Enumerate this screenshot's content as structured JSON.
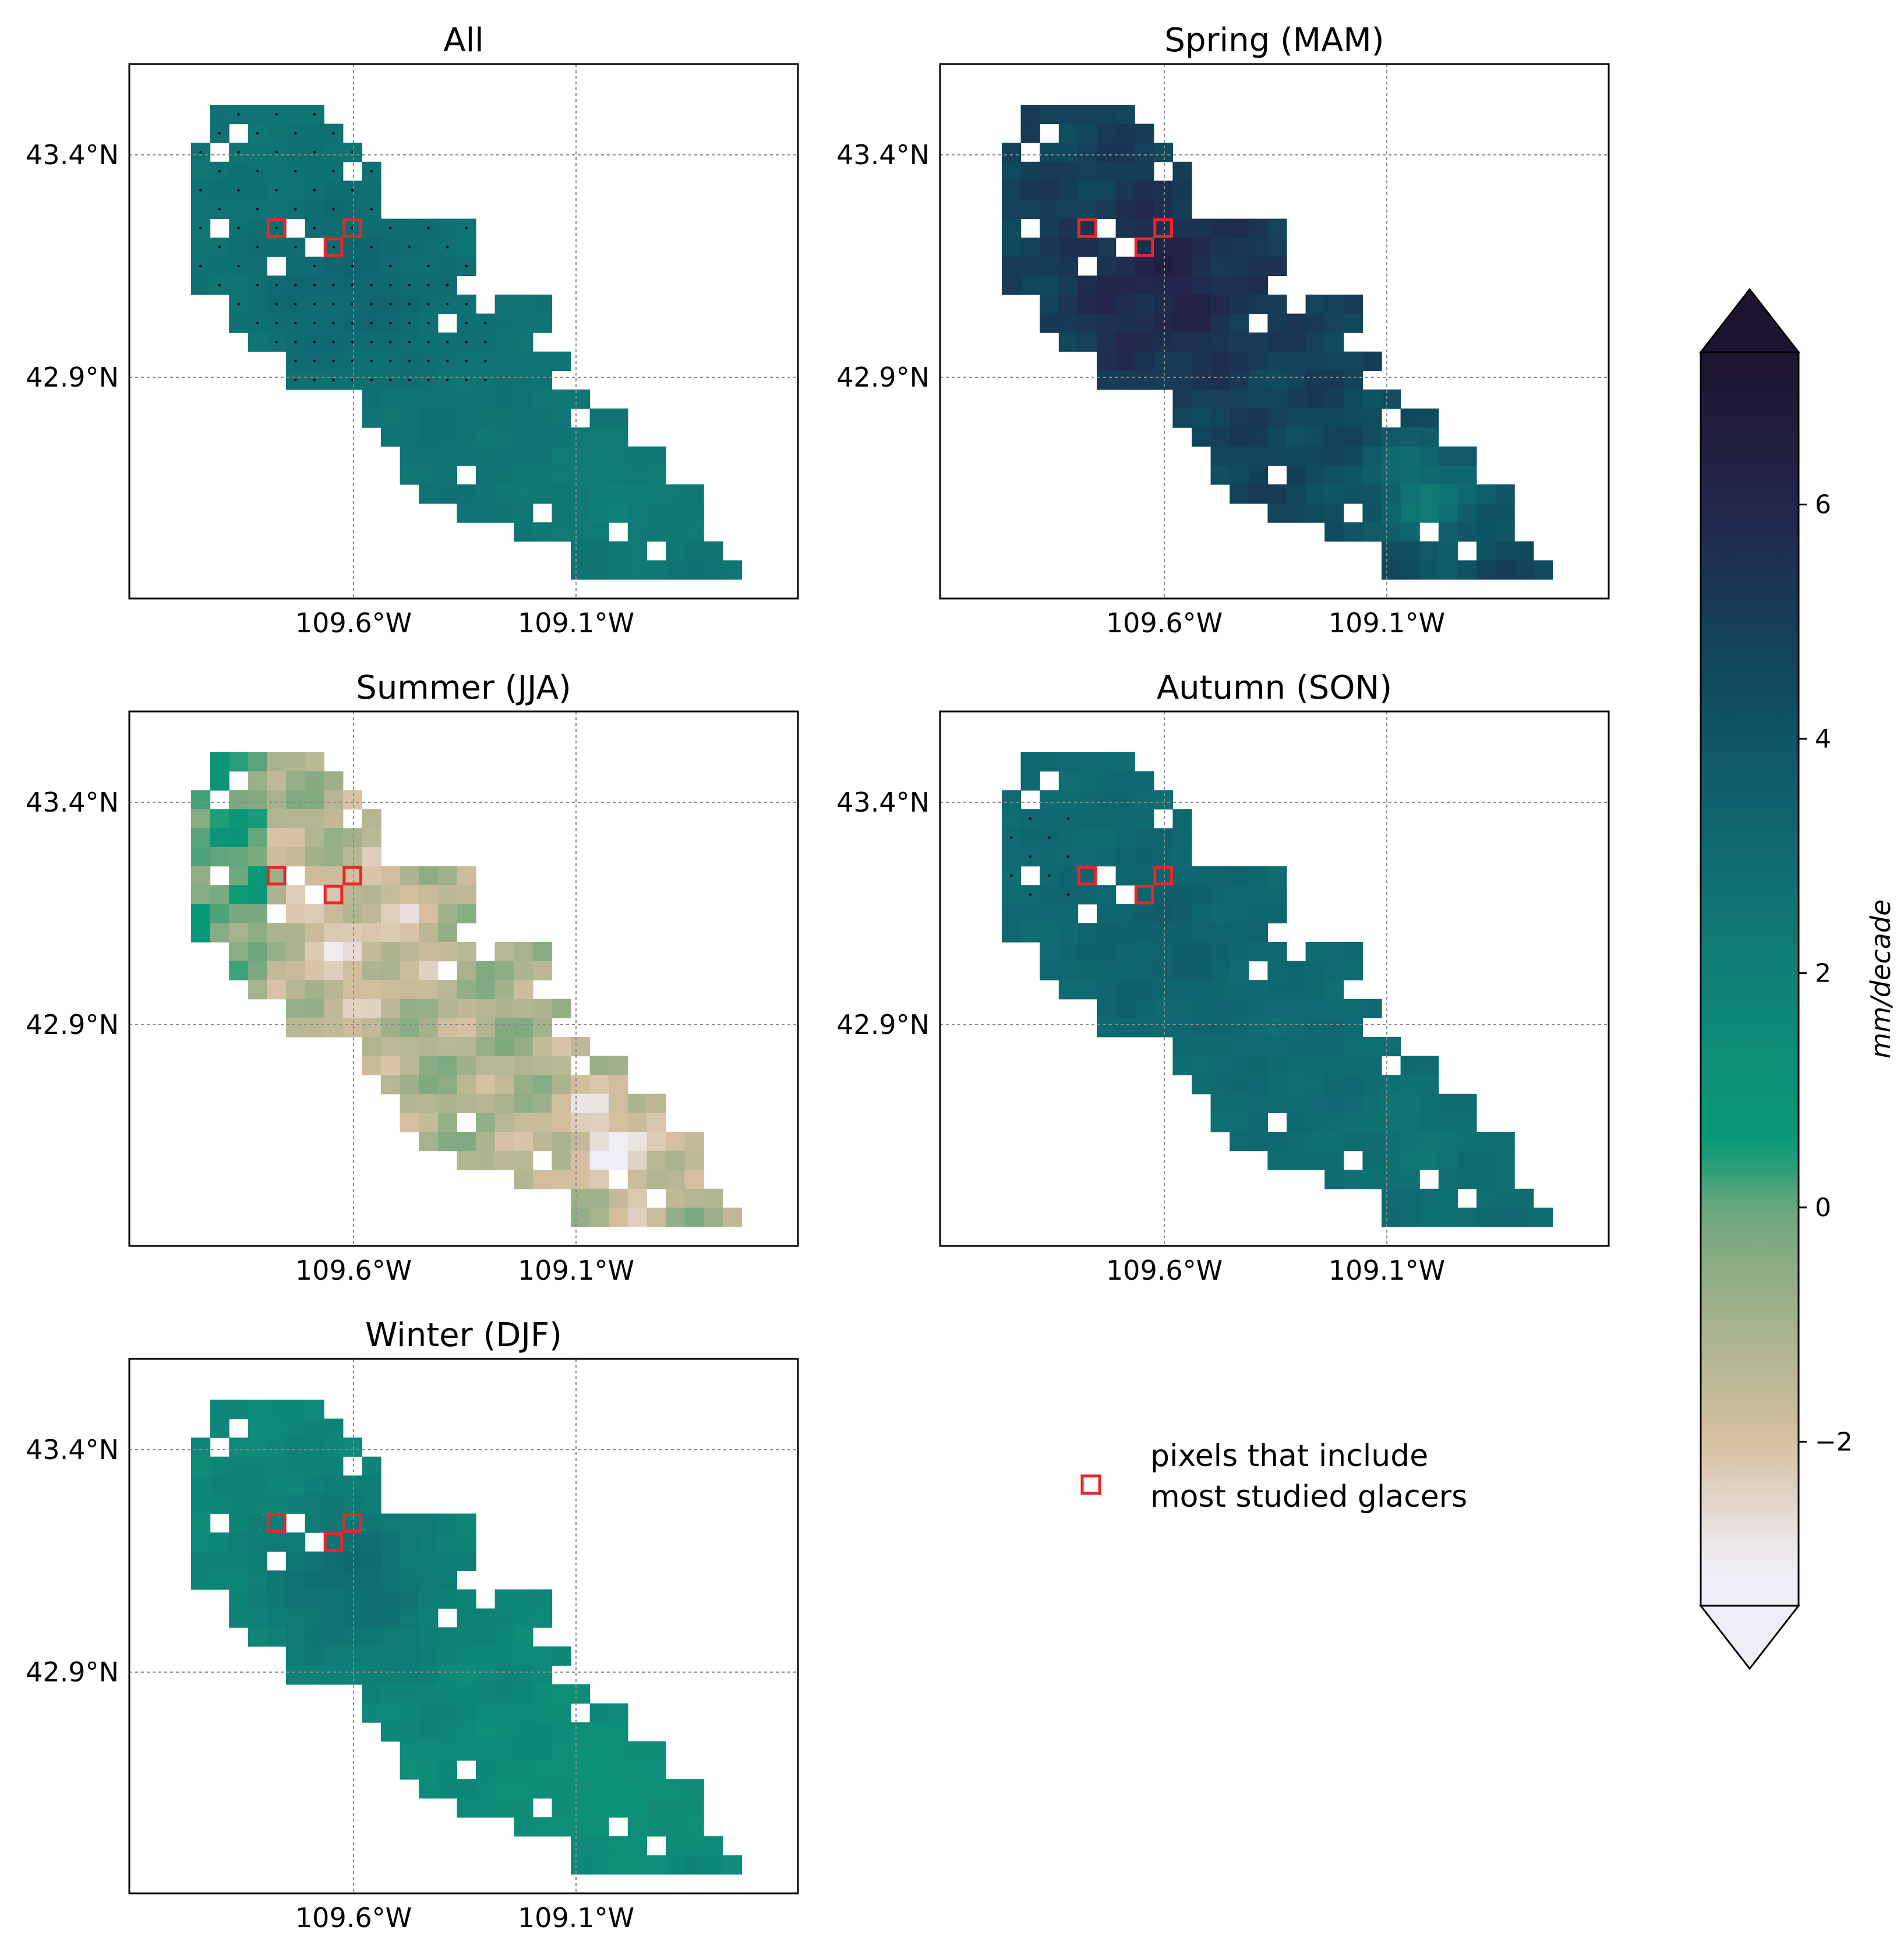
{
  "chart_data": {
    "type": "heatmap",
    "figure_title": "",
    "panels": [
      {
        "title": "All",
        "field": "all",
        "season_mean": 2.6,
        "stippled": true
      },
      {
        "title": "Spring (MAM)",
        "field": "spring",
        "season_mean": 4.8,
        "stippled": false
      },
      {
        "title": "Summer (JJA)",
        "field": "summer",
        "season_mean": -1.0,
        "stippled": false
      },
      {
        "title": "Autumn (SON)",
        "field": "autumn",
        "season_mean": 3.0,
        "stippled": true
      },
      {
        "title": "Winter (DJF)",
        "field": "winter",
        "season_mean": 1.6,
        "stippled": false
      }
    ],
    "x_ticks": [
      "109.6°W",
      "109.1°W"
    ],
    "y_ticks": [
      "43.4°N",
      "42.9°N"
    ],
    "glacier_pixels": [
      [
        6,
        4
      ],
      [
        7,
        7
      ],
      [
        6,
        8
      ]
    ],
    "legend": {
      "label_line1": "pixels that include",
      "label_line2": "most studied glacers",
      "marker": "red-square",
      "color": "#e8272a"
    },
    "colorbar": {
      "label": "mm/decade",
      "ticks": [
        6,
        4,
        2,
        0,
        -2
      ],
      "tick_labels": [
        "6",
        "4",
        "2",
        "0",
        "−2"
      ],
      "vmin": -3.4,
      "vmax": 7.3,
      "extend": "both",
      "colormap": "cmo.tempo-like",
      "stops": [
        {
          "v": -3.4,
          "c": "#efedf5"
        },
        {
          "v": -3.0,
          "c": "#efedf5"
        },
        {
          "v": -2.0,
          "c": "#d6bf9f"
        },
        {
          "v": -1.0,
          "c": "#a6b28c"
        },
        {
          "v": 0.0,
          "c": "#6ea77c"
        },
        {
          "v": 0.5,
          "c": "#089a77"
        },
        {
          "v": 1.5,
          "c": "#0f8b78"
        },
        {
          "v": 3.0,
          "c": "#0f6b71"
        },
        {
          "v": 4.5,
          "c": "#0f4a5d"
        },
        {
          "v": 6.0,
          "c": "#23264a"
        },
        {
          "v": 7.3,
          "c": "#1d1430"
        }
      ]
    },
    "grid_cells": {
      "note": "mask of data cells on the 28x23 grid; cell values derived from season_mean with spatial variation",
      "rows": [
        "..........................",
        "...........................",
        "...........................",
        "...........................",
        "...........................",
        "..........................",
        ".....................",
        "....................."
      ]
    }
  },
  "colors": {
    "frame": "#000000",
    "grid": "#8a8a8a",
    "glacier_box": "#e8272a"
  }
}
